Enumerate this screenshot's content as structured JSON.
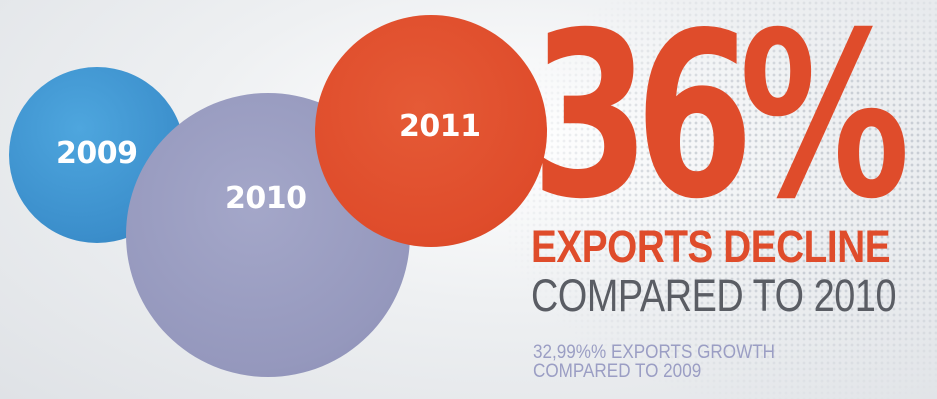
{
  "circles": {
    "year_2009": "2009",
    "year_2010": "2010",
    "year_2011": "2011"
  },
  "big_percent": "36%",
  "headline": "EXPORTS DECLINE",
  "subheadline": "COMPARED TO 2010",
  "note": {
    "line1": "32,99%% EXPORTS GROWTH",
    "line2": "COMPARED TO 2009"
  },
  "colors": {
    "blue": "#3b8ecb",
    "lavender": "#9598bd",
    "orange_red": "#df4c2b",
    "gray_text": "#5a5d64",
    "note_text": "#9b9ec4"
  },
  "icons": {
    "background": "world-map-dots-icon"
  }
}
